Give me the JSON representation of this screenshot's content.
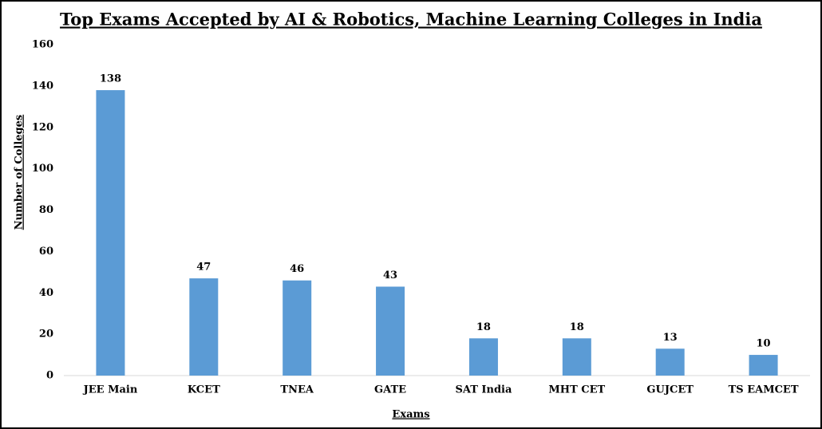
{
  "chart_data": {
    "type": "bar",
    "title": "Top Exams Accepted by AI & Robotics, Machine Learning Colleges in India",
    "x_label": "Exams",
    "y_label": "Number of Colleges",
    "categories": [
      "JEE Main",
      "KCET",
      "TNEA",
      "GATE",
      "SAT India",
      "MHT CET",
      "GUJCET",
      "TS EAMCET"
    ],
    "values": [
      138,
      47,
      46,
      43,
      18,
      18,
      13,
      10
    ],
    "color": "#5b9bd5",
    "ylim": [
      0,
      160
    ],
    "yticks": [
      0,
      20,
      40,
      60,
      80,
      100,
      120,
      140,
      160
    ],
    "grid": false
  }
}
